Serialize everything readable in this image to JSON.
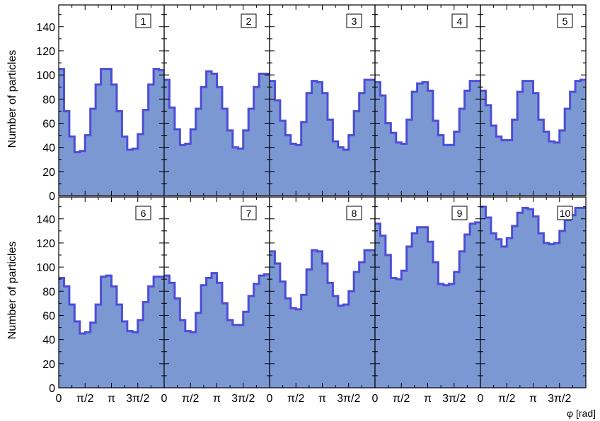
{
  "chart_data": {
    "type": "step-histogram grid",
    "ylabel": "Number of particles",
    "xlabel": "φ [rad]",
    "xlim": [
      0,
      6.2832
    ],
    "ylim": [
      0,
      158
    ],
    "yticks": [
      0,
      20,
      40,
      60,
      80,
      100,
      120,
      140
    ],
    "xtick_labels": [
      "0",
      "π/2",
      "π",
      "3π/2"
    ],
    "xtick_values": [
      0,
      1.5708,
      3.1416,
      4.7124
    ],
    "bins": 20,
    "fill_color": "#7b98d2",
    "line_color": "#4d4dd8",
    "panels": [
      {
        "label": "1",
        "values": [
          105,
          70,
          49,
          36,
          37,
          50,
          72,
          92,
          105,
          105,
          92,
          70,
          49,
          38,
          39,
          51,
          71,
          92,
          105,
          104
        ]
      },
      {
        "label": "2",
        "values": [
          96,
          73,
          55,
          42,
          43,
          55,
          72,
          90,
          103,
          101,
          90,
          72,
          54,
          40,
          39,
          54,
          72,
          90,
          101,
          101
        ]
      },
      {
        "label": "3",
        "values": [
          95,
          79,
          62,
          50,
          43,
          42,
          61,
          85,
          95,
          94,
          85,
          63,
          45,
          40,
          38,
          50,
          70,
          85,
          96,
          96
        ]
      },
      {
        "label": "4",
        "values": [
          94,
          83,
          60,
          52,
          44,
          43,
          63,
          86,
          93,
          94,
          87,
          62,
          50,
          42,
          42,
          53,
          72,
          87,
          95,
          95
        ]
      },
      {
        "label": "5",
        "values": [
          87,
          75,
          58,
          49,
          46,
          46,
          63,
          86,
          95,
          95,
          85,
          63,
          53,
          45,
          44,
          54,
          72,
          86,
          95,
          96
        ]
      },
      {
        "label": "6",
        "values": [
          91,
          84,
          69,
          55,
          45,
          46,
          54,
          69,
          92,
          93,
          84,
          69,
          55,
          47,
          46,
          56,
          71,
          84,
          92,
          92
        ]
      },
      {
        "label": "7",
        "values": [
          93,
          87,
          74,
          56,
          47,
          46,
          62,
          85,
          91,
          95,
          87,
          70,
          56,
          52,
          52,
          63,
          76,
          86,
          93,
          94
        ]
      },
      {
        "label": "8",
        "values": [
          113,
          103,
          88,
          74,
          66,
          65,
          77,
          98,
          114,
          113,
          103,
          87,
          76,
          68,
          69,
          80,
          96,
          104,
          114,
          114
        ]
      },
      {
        "label": "9",
        "values": [
          136,
          126,
          110,
          91,
          90,
          97,
          117,
          128,
          133,
          133,
          121,
          104,
          86,
          85,
          86,
          96,
          113,
          127,
          136,
          137
        ]
      },
      {
        "label": "10",
        "values": [
          150,
          141,
          128,
          123,
          117,
          124,
          134,
          145,
          149,
          148,
          142,
          128,
          120,
          119,
          120,
          130,
          139,
          143,
          149,
          149
        ]
      }
    ]
  }
}
